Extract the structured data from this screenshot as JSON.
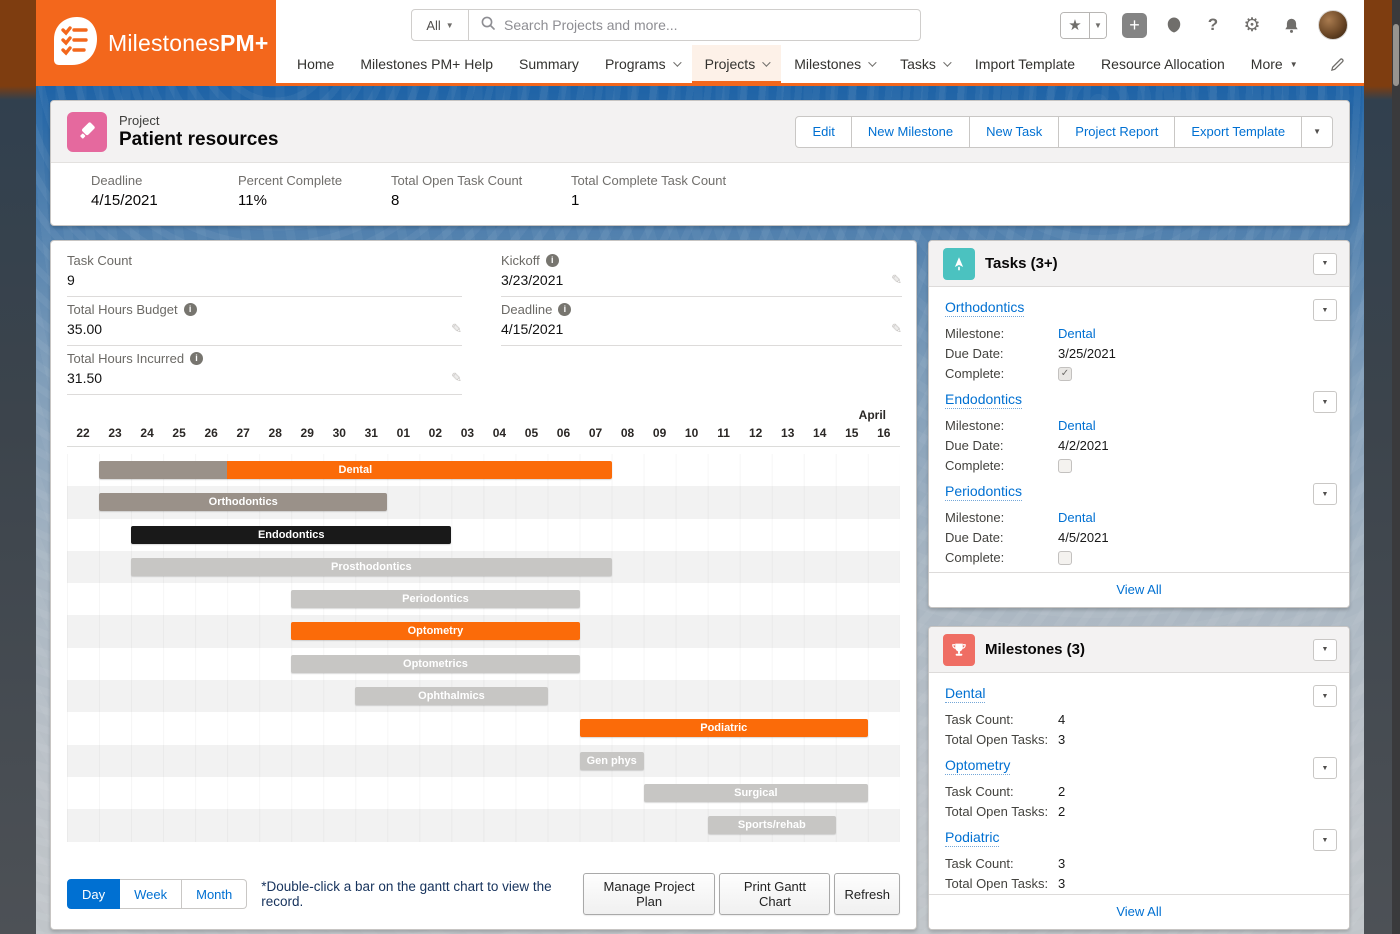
{
  "colors": {
    "brand_orange": "#f3671c",
    "link_blue": "#0070d2",
    "bars": {
      "orange": "#fb6b09",
      "taupe": "#9a9189",
      "light": "#c7c6c4",
      "black": "#191919"
    },
    "record_icon_pink": "#e5699e",
    "tasks_icon_teal": "#4bc2c0",
    "milestones_icon_red": "#ef6e64"
  },
  "icons": {
    "caret_down_small": "▼",
    "star": "★",
    "gear": "⚙",
    "help": "?",
    "plus": "+",
    "pencil": "✎",
    "check": "✓",
    "info": "i"
  },
  "header": {
    "logo_regular": "Milestones",
    "logo_bold": "PM+",
    "search": {
      "scope": "All",
      "placeholder": "Search Projects and more..."
    },
    "nav_tabs": [
      {
        "label": "Home"
      },
      {
        "label": "Milestones PM+ Help"
      },
      {
        "label": "Summary"
      },
      {
        "label": "Programs"
      },
      {
        "label": "Projects"
      },
      {
        "label": "Milestones"
      },
      {
        "label": "Tasks"
      },
      {
        "label": "Import Template"
      },
      {
        "label": "Resource Allocation"
      },
      {
        "label": "More"
      }
    ]
  },
  "page_header": {
    "record_type": "Project",
    "title": "Patient resources",
    "actions": [
      "Edit",
      "New Milestone",
      "New Task",
      "Project Report",
      "Export Template"
    ],
    "stats": [
      {
        "label": "Deadline",
        "value": "4/15/2021"
      },
      {
        "label": "Percent Complete",
        "value": "11%"
      },
      {
        "label": "Total Open Task Count",
        "value": "8"
      },
      {
        "label": "Total Complete Task Count",
        "value": "1"
      }
    ]
  },
  "details": {
    "fields_left": [
      {
        "label": "Task Count",
        "value": "9"
      },
      {
        "label": "Total Hours Budget",
        "value": "35.00"
      },
      {
        "label": "Total Hours Incurred",
        "value": "31.50"
      }
    ],
    "fields_right": [
      {
        "label": "Kickoff",
        "value": "3/23/2021"
      },
      {
        "label": "Deadline",
        "value": "4/15/2021"
      }
    ]
  },
  "chart_data": {
    "type": "gantt",
    "view": "Day",
    "month_label": "April",
    "columns": 26,
    "ticks": [
      "22",
      "23",
      "24",
      "25",
      "26",
      "27",
      "28",
      "29",
      "30",
      "31",
      "01",
      "02",
      "03",
      "04",
      "05",
      "06",
      "07",
      "08",
      "09",
      "10",
      "11",
      "12",
      "13",
      "14",
      "15",
      "16"
    ],
    "rows": [
      {
        "label": "Dental",
        "start": 1,
        "end": 17,
        "color": "orange",
        "pre_color": "taupe",
        "grey_until": 5
      },
      {
        "label": "Orthodontics",
        "start": 1,
        "end": 10,
        "color": "taupe"
      },
      {
        "label": "Endodontics",
        "start": 2,
        "end": 12,
        "color": "black"
      },
      {
        "label": "Prosthodontics",
        "start": 2,
        "end": 17,
        "color": "light"
      },
      {
        "label": "Periodontics",
        "start": 7,
        "end": 16,
        "color": "light"
      },
      {
        "label": "Optometry",
        "start": 7,
        "end": 16,
        "color": "orange"
      },
      {
        "label": "Optometrics",
        "start": 7,
        "end": 16,
        "color": "light"
      },
      {
        "label": "Ophthalmics",
        "start": 9,
        "end": 15,
        "color": "light"
      },
      {
        "label": "Podiatric",
        "start": 16,
        "end": 25,
        "color": "orange"
      },
      {
        "label": "Gen phys",
        "start": 16,
        "end": 18,
        "color": "light"
      },
      {
        "label": "Surgical",
        "start": 18,
        "end": 25,
        "color": "light"
      },
      {
        "label": "Sports/rehab",
        "start": 20,
        "end": 24,
        "color": "light"
      }
    ]
  },
  "gantt_footer": {
    "view_buttons": [
      "Day",
      "Week",
      "Month"
    ],
    "active_view": "Day",
    "note": "*Double-click a bar on the gantt chart to view the record.",
    "action_buttons": [
      "Manage Project Plan",
      "Print Gantt Chart",
      "Refresh"
    ]
  },
  "tasks_panel": {
    "title": "Tasks (3+)",
    "labels": {
      "milestone": "Milestone:",
      "due_date": "Due Date:",
      "complete": "Complete:"
    },
    "items": [
      {
        "title": "Orthodontics",
        "milestone": "Dental",
        "due_date": "3/25/2021",
        "complete": true
      },
      {
        "title": "Endodontics",
        "milestone": "Dental",
        "due_date": "4/2/2021",
        "complete": false
      },
      {
        "title": "Periodontics",
        "milestone": "Dental",
        "due_date": "4/5/2021",
        "complete": false
      }
    ],
    "view_all": "View All"
  },
  "milestones_panel": {
    "title": "Milestones (3)",
    "labels": {
      "task_count": "Task Count:",
      "open_tasks": "Total Open Tasks:"
    },
    "items": [
      {
        "title": "Dental",
        "task_count": "4",
        "open_tasks": "3"
      },
      {
        "title": "Optometry",
        "task_count": "2",
        "open_tasks": "2"
      },
      {
        "title": "Podiatric",
        "task_count": "3",
        "open_tasks": "3"
      }
    ],
    "view_all": "View All"
  }
}
